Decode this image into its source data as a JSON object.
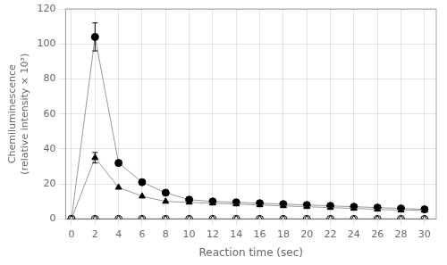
{
  "chart_data": {
    "type": "line",
    "xlabel": "Reaction time (sec)",
    "ylabel": "Chemiluminescence\n(relative intensity × 10³)",
    "x": [
      0,
      2,
      4,
      6,
      8,
      10,
      12,
      14,
      16,
      18,
      20,
      22,
      24,
      26,
      28,
      30
    ],
    "series": [
      {
        "color": "#999999",
        "marker": "circle",
        "values": [
          0,
          104,
          32,
          21,
          15,
          11,
          10,
          9.5,
          9,
          8.5,
          8,
          7.5,
          7,
          6.5,
          6,
          5.5
        ],
        "errors": [
          0,
          8,
          0,
          0,
          0,
          0,
          0,
          0,
          0,
          0,
          0,
          0,
          0,
          0,
          0,
          0
        ]
      },
      {
        "color": "#999999",
        "marker": "triangle",
        "values": [
          0,
          35,
          18,
          13,
          10,
          9.5,
          9,
          8.5,
          8,
          7.5,
          7,
          6.5,
          6,
          5.5,
          5,
          5
        ],
        "errors": [
          0,
          3,
          0,
          0,
          0,
          0,
          0,
          0,
          0,
          0,
          0,
          0,
          0,
          0,
          0,
          0
        ]
      },
      {
        "color": "#999999",
        "marker": "open circle",
        "values": [
          0,
          0,
          0,
          0,
          0,
          0,
          0,
          0,
          0,
          0,
          0,
          0,
          0,
          0,
          0,
          0
        ]
      },
      {
        "color": "#999999",
        "marker": "open triangle",
        "values": [
          0,
          0,
          0,
          0,
          0,
          0,
          0,
          0,
          0,
          0,
          0,
          0,
          0,
          0,
          0,
          0
        ]
      }
    ],
    "xlim": [
      -0.5,
      31
    ],
    "xticks": [
      0,
      2,
      4,
      6,
      8,
      10,
      12,
      14,
      16,
      18,
      20,
      22,
      24,
      26,
      28,
      30
    ],
    "ylim": [
      0,
      120
    ],
    "yticks": [
      0,
      20,
      40,
      60,
      80,
      100,
      120
    ]
  }
}
